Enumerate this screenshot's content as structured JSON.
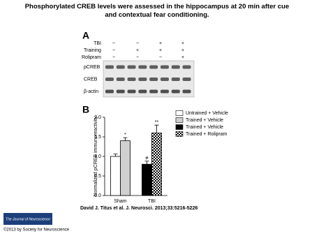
{
  "title": "Phosphorylated CREB levels were assessed in the hippocampus at 20 min after cue and contextual fear conditioning.",
  "panel_a": {
    "label": "A",
    "conditions": [
      {
        "name": "TBI",
        "marks": [
          "−",
          "−",
          "+",
          "+"
        ]
      },
      {
        "name": "Training",
        "marks": [
          "−",
          "+",
          "+",
          "+"
        ]
      },
      {
        "name": "Rolipram",
        "marks": [
          "−",
          "−",
          "−",
          "+"
        ]
      }
    ],
    "rows": [
      "pCREB",
      "CREB",
      "β-actin"
    ]
  },
  "chart_data": {
    "type": "bar",
    "panel_label": "B",
    "ylabel": "Normalized pCREB immunoreactivity",
    "categories": [
      "Sham",
      "TBI"
    ],
    "series": [
      {
        "name": "Untrained + Vehicle",
        "color": "#ffffff",
        "values": [
          1.0,
          null
        ],
        "errors": [
          0.06,
          null
        ],
        "markers": [
          null,
          null
        ]
      },
      {
        "name": "Trained + Vehicle",
        "color": "#d0d0d0",
        "values": [
          1.4,
          null
        ],
        "errors": [
          0.08,
          null
        ],
        "markers": [
          "*",
          null
        ]
      },
      {
        "name": "Trained + Vehicle",
        "color": "#000000",
        "values": [
          null,
          0.8
        ],
        "errors": [
          null,
          0.08
        ],
        "markers": [
          null,
          "#"
        ]
      },
      {
        "name": "Trained + Rolipram",
        "color": "#000000",
        "fill_pattern": "checkerboard",
        "values": [
          null,
          1.6
        ],
        "errors": [
          null,
          0.2
        ],
        "markers": [
          null,
          "**"
        ]
      }
    ],
    "ylim": [
      0,
      2
    ],
    "yticks": [
      {
        "value": 0,
        "label": "0.0"
      },
      0.5,
      {
        "value": 1,
        "label": "1.0"
      },
      1.5,
      {
        "value": 2,
        "label": "2.0"
      }
    ]
  },
  "citation": "David J. Titus et al. J. Neurosci. 2013;33:5216-5226",
  "journal": "The Journal of Neuroscience",
  "copyright": "©2013 by Society for Neuroscience"
}
